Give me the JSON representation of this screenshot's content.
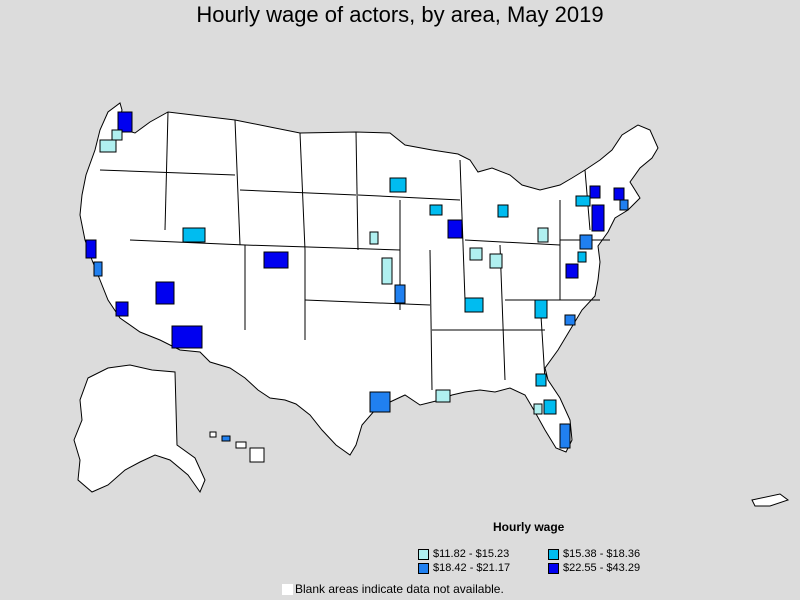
{
  "title": "Hourly wage of actors, by area, May 2019",
  "legend": {
    "title": "Hourly wage",
    "items": [
      {
        "label": "$11.82 - $15.23",
        "color": "#b0f0f0"
      },
      {
        "label": "$15.38 - $18.36",
        "color": "#00bcf0"
      },
      {
        "label": "$18.42 - $21.17",
        "color": "#2080f0"
      },
      {
        "label": "$22.55 - $43.29",
        "color": "#0000f0"
      }
    ]
  },
  "note": "Blank areas indicate data not available.",
  "colors": {
    "background": "#dcdcdc",
    "land": "#ffffff",
    "border": "#000000"
  }
}
